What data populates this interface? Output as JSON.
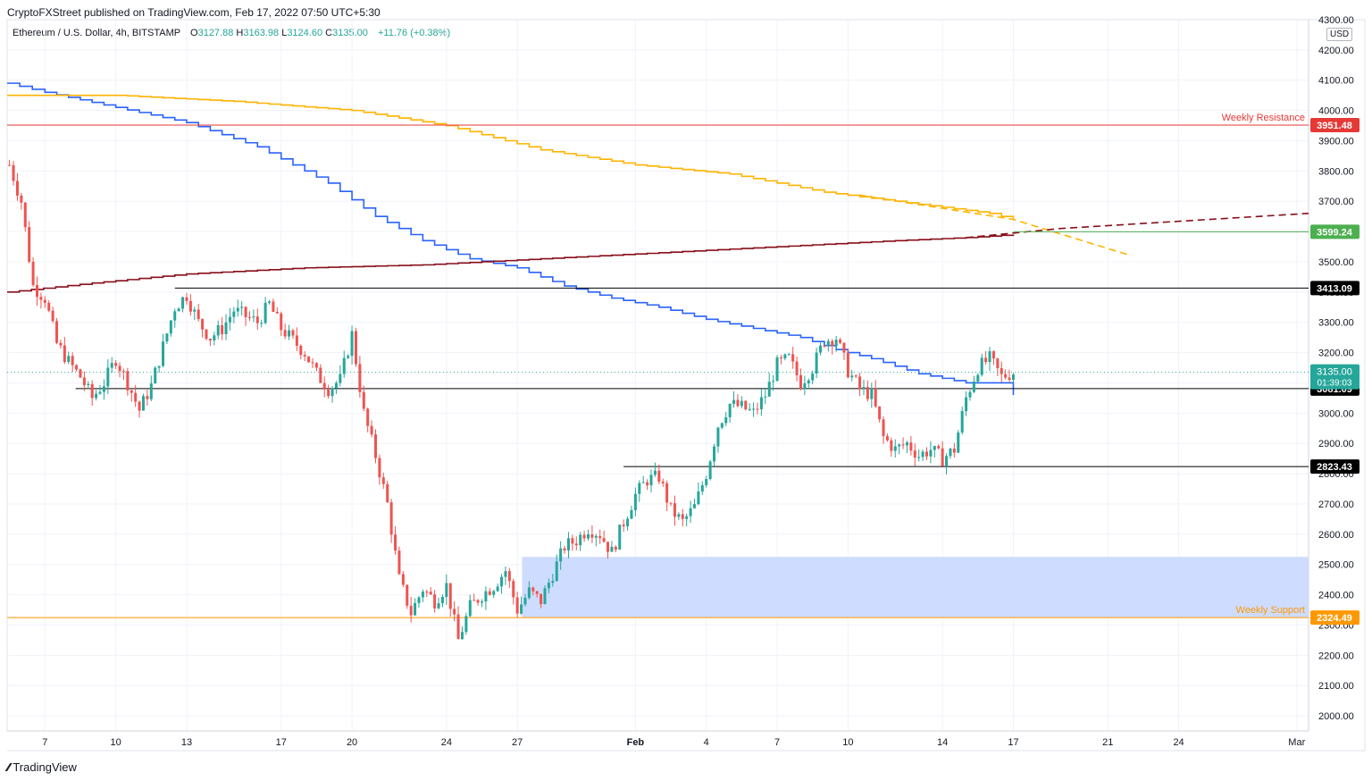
{
  "header": {
    "published": "CryptoFXStreet published on TradingView.com, Feb 17, 2022 07:50 UTC+5:30",
    "symbol": "Ethereum / U.S. Dollar, 4h, BITSTAMP",
    "ohlc": [
      {
        "k": "O",
        "v": "3127.88"
      },
      {
        "k": "H",
        "v": "3163.98"
      },
      {
        "k": "L",
        "v": "3124.60"
      },
      {
        "k": "C",
        "v": "3135.00"
      }
    ],
    "change": "+11.76 (+0.38%)"
  },
  "currency": "USD",
  "brand": "TradingView",
  "colors": {
    "up": "#26a69a",
    "down": "#ef5350",
    "blue_line": "#2962ff",
    "orange_line": "#ffb300",
    "maroon_line": "#880e1a",
    "resistance": "#e53935",
    "support": "#ff9800",
    "green_level": "#4caf50",
    "zone": "#c9d8ff"
  },
  "chart_data": {
    "type": "candlestick",
    "ylim": [
      1950,
      4300
    ],
    "y_ticks": [
      2000,
      2100,
      2200,
      2300,
      2400,
      2500,
      2600,
      2700,
      2800,
      2900,
      3000,
      3100,
      3200,
      3300,
      3400,
      3500,
      3600,
      3700,
      3800,
      3900,
      4000,
      4100,
      4200,
      4300
    ],
    "y_tick_labels": [
      "2000.00",
      "2100.00",
      "2200.00",
      "2300.00",
      "2400.00",
      "2500.00",
      "2600.00",
      "2700.00",
      "2800.00",
      "2900.00",
      "3000.00",
      "3100.00",
      "3200.00",
      "3300.00",
      "3400.00",
      "3500.00",
      "3600.00",
      "3700.00",
      "3800.00",
      "3900.00",
      "4000.00",
      "4100.00",
      "4200.00",
      "4300.00"
    ],
    "x_range_days": [
      5.4,
      60.5
    ],
    "x_ticks": [
      {
        "day": 7,
        "label": "7"
      },
      {
        "day": 10,
        "label": "10"
      },
      {
        "day": 13,
        "label": "13"
      },
      {
        "day": 17,
        "label": "17"
      },
      {
        "day": 20,
        "label": "20"
      },
      {
        "day": 24,
        "label": "24"
      },
      {
        "day": 27,
        "label": "27"
      },
      {
        "day": 32,
        "label": "Feb",
        "bold": true
      },
      {
        "day": 35,
        "label": "4"
      },
      {
        "day": 38,
        "label": "7"
      },
      {
        "day": 41,
        "label": "10"
      },
      {
        "day": 45,
        "label": "14"
      },
      {
        "day": 48,
        "label": "17"
      },
      {
        "day": 52,
        "label": "21"
      },
      {
        "day": 55,
        "label": "24"
      },
      {
        "day": 60,
        "label": "Mar"
      }
    ],
    "price_path": [
      [
        5.5,
        3820
      ],
      [
        6.0,
        3700
      ],
      [
        6.5,
        3420
      ],
      [
        7.0,
        3380
      ],
      [
        7.5,
        3230
      ],
      [
        8.0,
        3170
      ],
      [
        8.5,
        3120
      ],
      [
        9.0,
        3050
      ],
      [
        9.5,
        3100
      ],
      [
        10.0,
        3180
      ],
      [
        10.5,
        3100
      ],
      [
        11.0,
        3010
      ],
      [
        11.5,
        3090
      ],
      [
        12.0,
        3220
      ],
      [
        12.5,
        3350
      ],
      [
        13.0,
        3390
      ],
      [
        13.5,
        3300
      ],
      [
        14.0,
        3250
      ],
      [
        14.5,
        3280
      ],
      [
        15.0,
        3340
      ],
      [
        15.5,
        3320
      ],
      [
        16.0,
        3300
      ],
      [
        16.5,
        3360
      ],
      [
        17.0,
        3280
      ],
      [
        17.5,
        3240
      ],
      [
        18.0,
        3200
      ],
      [
        18.5,
        3130
      ],
      [
        19.0,
        3080
      ],
      [
        19.5,
        3110
      ],
      [
        20.0,
        3260
      ],
      [
        20.5,
        3000
      ],
      [
        21.0,
        2860
      ],
      [
        21.5,
        2700
      ],
      [
        22.0,
        2450
      ],
      [
        22.5,
        2340
      ],
      [
        23.0,
        2420
      ],
      [
        23.5,
        2380
      ],
      [
        24.0,
        2430
      ],
      [
        24.5,
        2250
      ],
      [
        25.0,
        2360
      ],
      [
        25.5,
        2400
      ],
      [
        26.0,
        2430
      ],
      [
        26.5,
        2480
      ],
      [
        27.0,
        2350
      ],
      [
        27.5,
        2410
      ],
      [
        28.0,
        2380
      ],
      [
        28.5,
        2470
      ],
      [
        29.0,
        2560
      ],
      [
        29.5,
        2580
      ],
      [
        30.0,
        2620
      ],
      [
        30.5,
        2600
      ],
      [
        31.0,
        2540
      ],
      [
        31.5,
        2640
      ],
      [
        32.0,
        2730
      ],
      [
        32.5,
        2780
      ],
      [
        33.0,
        2790
      ],
      [
        33.5,
        2680
      ],
      [
        34.0,
        2640
      ],
      [
        34.5,
        2690
      ],
      [
        35.0,
        2800
      ],
      [
        35.5,
        2960
      ],
      [
        36.0,
        3030
      ],
      [
        36.5,
        3020
      ],
      [
        37.0,
        3000
      ],
      [
        37.5,
        3060
      ],
      [
        38.0,
        3160
      ],
      [
        38.5,
        3180
      ],
      [
        39.0,
        3100
      ],
      [
        39.5,
        3150
      ],
      [
        40.0,
        3240
      ],
      [
        40.5,
        3250
      ],
      [
        41.0,
        3140
      ],
      [
        41.5,
        3080
      ],
      [
        42.0,
        3060
      ],
      [
        42.5,
        2920
      ],
      [
        43.0,
        2880
      ],
      [
        43.5,
        2900
      ],
      [
        44.0,
        2860
      ],
      [
        44.5,
        2880
      ],
      [
        45.0,
        2850
      ],
      [
        45.5,
        2880
      ],
      [
        46.0,
        3050
      ],
      [
        46.5,
        3150
      ],
      [
        47.0,
        3180
      ],
      [
        47.5,
        3120
      ],
      [
        48.0,
        3135
      ]
    ],
    "indicators": [
      {
        "color": "#2962ff",
        "points": [
          [
            5.4,
            4090
          ],
          [
            7,
            4060
          ],
          [
            10,
            4010
          ],
          [
            13,
            3960
          ],
          [
            16,
            3880
          ],
          [
            19,
            3760
          ],
          [
            21,
            3650
          ],
          [
            23,
            3570
          ],
          [
            25,
            3510
          ],
          [
            27,
            3480
          ],
          [
            29,
            3420
          ],
          [
            31,
            3380
          ],
          [
            33,
            3350
          ],
          [
            35,
            3310
          ],
          [
            37,
            3280
          ],
          [
            39,
            3250
          ],
          [
            40.5,
            3210
          ],
          [
            42,
            3180
          ],
          [
            44,
            3130
          ],
          [
            46,
            3100
          ],
          [
            47.5,
            3100
          ],
          [
            48,
            3060
          ]
        ]
      },
      {
        "color": "#ffb300",
        "points": [
          [
            5.4,
            4050
          ],
          [
            10,
            4050
          ],
          [
            15,
            4030
          ],
          [
            20,
            4000
          ],
          [
            24,
            3950
          ],
          [
            28,
            3870
          ],
          [
            32,
            3820
          ],
          [
            36,
            3790
          ],
          [
            40,
            3730
          ],
          [
            44,
            3690
          ],
          [
            47,
            3660
          ],
          [
            48,
            3640
          ]
        ]
      },
      {
        "color": "#880e1a",
        "points": [
          [
            5.4,
            3400
          ],
          [
            9,
            3430
          ],
          [
            13,
            3460
          ],
          [
            18,
            3480
          ],
          [
            23,
            3490
          ],
          [
            28,
            3510
          ],
          [
            33,
            3530
          ],
          [
            38,
            3550
          ],
          [
            43,
            3570
          ],
          [
            46,
            3580
          ],
          [
            48,
            3590
          ]
        ]
      }
    ],
    "projections": [
      {
        "color": "#ffb300",
        "points": [
          [
            41.5,
            3720
          ],
          [
            48,
            3640
          ],
          [
            53,
            3520
          ]
        ]
      },
      {
        "color": "#880e1a",
        "points": [
          [
            46,
            3580
          ],
          [
            50,
            3610
          ],
          [
            60.5,
            3660
          ]
        ]
      }
    ],
    "h_levels": [
      {
        "price": 3951.48,
        "label": "3951.48",
        "color": "#e53935",
        "from_day": 5.4,
        "text": "Weekly Resistance"
      },
      {
        "price": 3599.24,
        "label": "3599.24",
        "color": "#4caf50",
        "from_day": 48.0,
        "text": ""
      },
      {
        "price": 3413.09,
        "label": "3413.09",
        "color": "#000000",
        "from_day": 12.5,
        "text": ""
      },
      {
        "price": 3081.09,
        "label": "3081.09",
        "color": "#000000",
        "from_day": 8.3,
        "text": ""
      },
      {
        "price": 2823.43,
        "label": "2823.43",
        "color": "#000000",
        "from_day": 31.5,
        "text": ""
      },
      {
        "price": 2324.49,
        "label": "2324.49",
        "color": "#ff9800",
        "from_day": 5.4,
        "text": "Weekly Support"
      }
    ],
    "current_price": {
      "price": 3135.0,
      "label": "3135.00",
      "countdown": "01:39:03"
    },
    "zone": {
      "from_day": 27.2,
      "to_day": 60.5,
      "low": 2324.49,
      "high": 2525
    }
  }
}
